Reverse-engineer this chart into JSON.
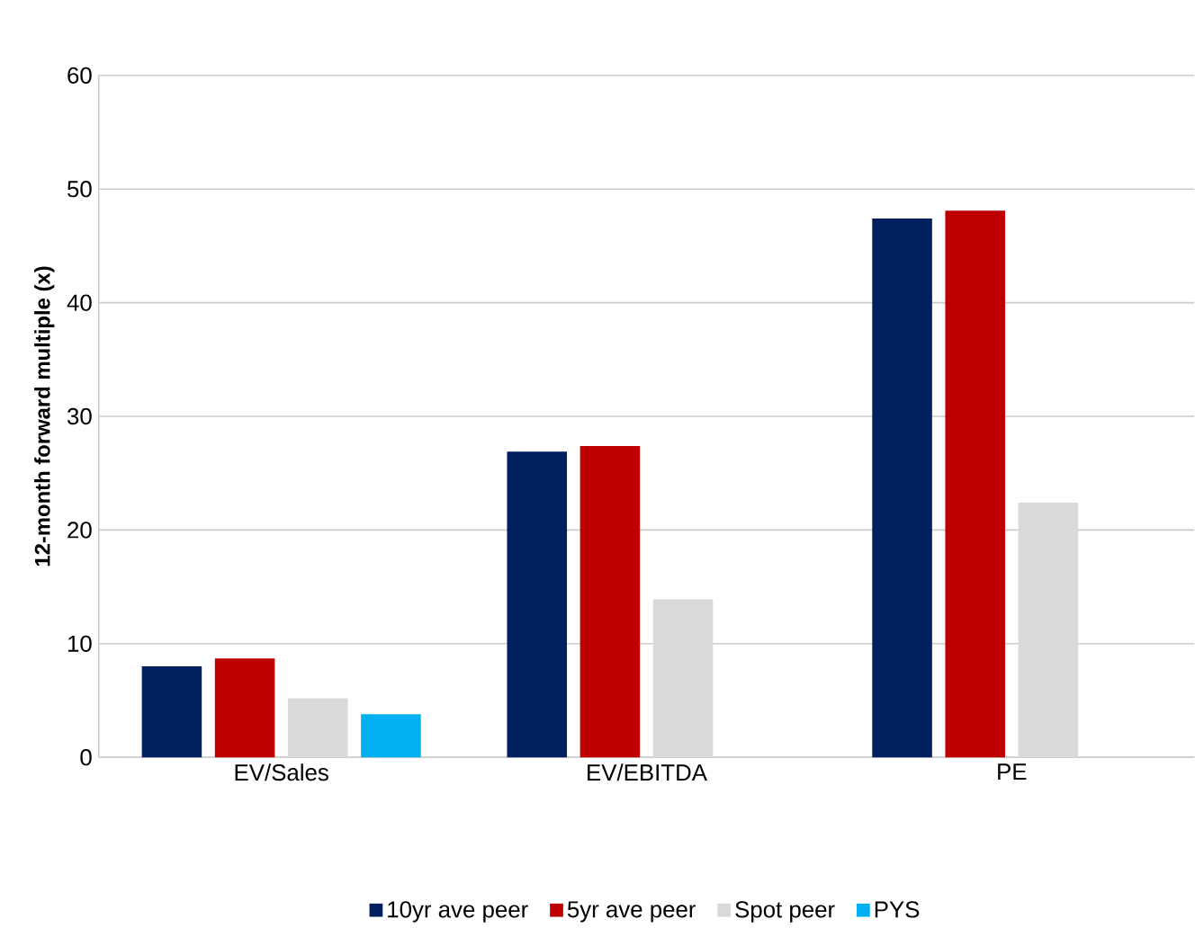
{
  "chart_data": {
    "type": "bar",
    "ylabel": "12-month forward multiple (x)",
    "categories": [
      "EV/Sales",
      "EV/EBITDA",
      "PE"
    ],
    "series": [
      {
        "name": "10yr ave peer",
        "color": "#002060",
        "values": [
          8.0,
          26.9,
          47.4
        ]
      },
      {
        "name": "5yr ave peer",
        "color": "#c00000",
        "values": [
          8.7,
          27.4,
          48.1
        ]
      },
      {
        "name": "Spot peer",
        "color": "#d9d9d9",
        "values": [
          5.2,
          13.9,
          22.4
        ]
      },
      {
        "name": "PYS",
        "color": "#00b0f0",
        "values": [
          3.8,
          null,
          null
        ]
      }
    ],
    "ylim": [
      0,
      60
    ],
    "yticks": [
      0,
      10,
      20,
      30,
      40,
      50,
      60
    ],
    "grid": "y",
    "legend": "bottom"
  }
}
